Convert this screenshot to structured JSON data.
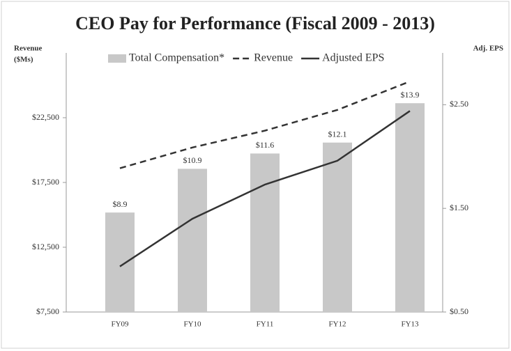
{
  "chart_data": {
    "type": "bar-line",
    "title": "CEO Pay for Performance (Fiscal 2009 - 2013)",
    "y_label": [
      "Revenue",
      "($Ms)"
    ],
    "y2_label": "Adj. EPS",
    "categories": [
      "FY09",
      "FY10",
      "FY11",
      "FY12",
      "FY13"
    ],
    "series": [
      {
        "name": "Total Compensation*",
        "type": "bar",
        "axis": "y3",
        "color": "#c8c8c8",
        "values": [
          8.9,
          10.9,
          11.6,
          12.1,
          13.9
        ],
        "value_labels": [
          "$8.9",
          "$10.9",
          "$11.6",
          "$12.1",
          "$13.9"
        ]
      },
      {
        "name": "Revenue",
        "type": "line",
        "dash": true,
        "axis": "y",
        "color": "#333333",
        "values": [
          18600,
          20200,
          21500,
          23100,
          25300
        ]
      },
      {
        "name": "Adjusted EPS",
        "type": "line",
        "dash": false,
        "axis": "y2",
        "color": "#333333",
        "values": [
          0.94,
          1.4,
          1.73,
          1.96,
          2.44
        ]
      }
    ],
    "ylim": [
      7500,
      27500
    ],
    "yticks": [
      {
        "value": 7500,
        "label": "$7,500"
      },
      {
        "value": 12500,
        "label": "$12,500"
      },
      {
        "value": 17500,
        "label": "$17,500"
      },
      {
        "value": 22500,
        "label": "$22,500"
      }
    ],
    "y2lim": [
      0.5,
      3.0
    ],
    "y2ticks": [
      {
        "value": 0.5,
        "label": "$0.50"
      },
      {
        "value": 1.5,
        "label": "$1.50"
      },
      {
        "value": 2.5,
        "label": "$2.50"
      }
    ],
    "y3lim": [
      4.35,
      16.2
    ],
    "legend": "top"
  }
}
